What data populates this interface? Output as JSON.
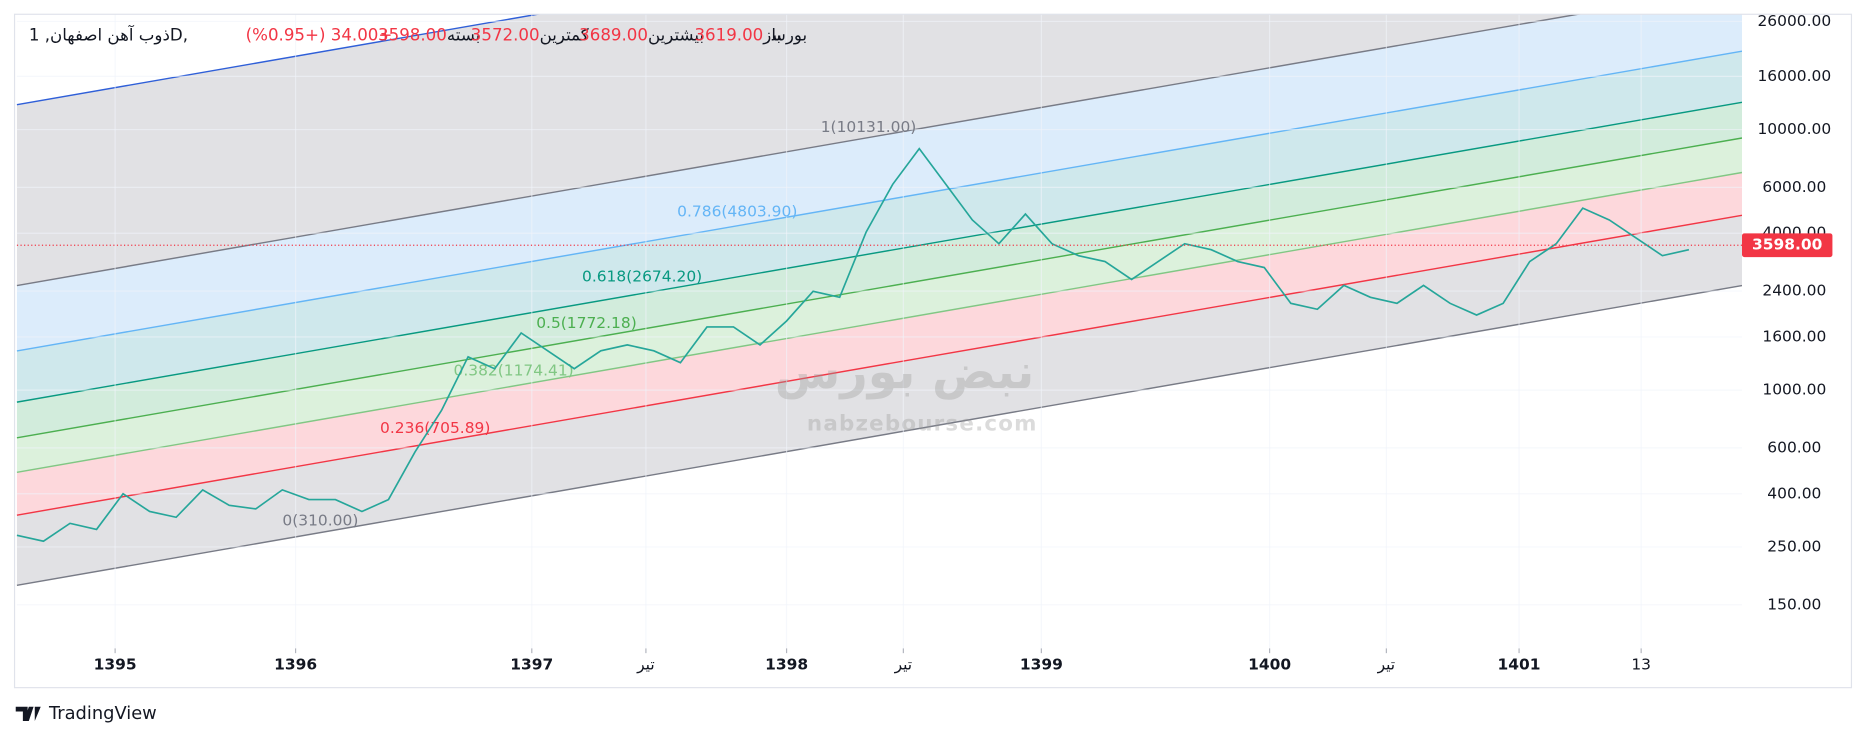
{
  "chart_data": {
    "type": "line",
    "title": "ذوب آهن اصفهان, 1D, بورس",
    "ohlc": [
      {
        "name": "باز",
        "value": "3619.00"
      },
      {
        "name": "بیشترین",
        "value": "3689.00"
      },
      {
        "name": "کمترین",
        "value": "3572.00"
      },
      {
        "name": "بسته",
        "value": "3598.00"
      }
    ],
    "change": "+34.00 (+0.95%)",
    "series": [
      {
        "name": "ذوب آهن اصفهان",
        "color": "#26a69a",
        "values": [
          277,
          263,
          308,
          292,
          400,
          342,
          325,
          414,
          361,
          350,
          414,
          380,
          380,
          342,
          380,
          579,
          836,
          1342,
          1208,
          1657,
          1415,
          1208,
          1415,
          1491,
          1415,
          1274,
          1747,
          1747,
          1491,
          1842,
          2394,
          2271,
          4046,
          6165,
          8448,
          6165,
          4497,
          3646,
          4740,
          3646,
          3281,
          3114,
          2659,
          3114,
          3646,
          3459,
          3114,
          2954,
          2153,
          2043,
          2523,
          2271,
          2153,
          2523,
          2153,
          1941,
          2153,
          3114,
          3646,
          4995,
          4497,
          3842,
          3281,
          3459
        ]
      }
    ],
    "log_scale": true,
    "ylim": [
      102,
      27700
    ],
    "yticks": [
      {
        "value": 150,
        "label": "150.00"
      },
      {
        "value": 250,
        "label": "250.00"
      },
      {
        "value": 400,
        "label": "400.00"
      },
      {
        "value": 600,
        "label": "600.00"
      },
      {
        "value": 1000,
        "label": "1000.00"
      },
      {
        "value": 1600,
        "label": "1600.00"
      },
      {
        "value": 2400,
        "label": "2400.00"
      },
      {
        "value": 4000,
        "label": "4000.00"
      },
      {
        "value": 6000,
        "label": "6000.00"
      },
      {
        "value": 10000,
        "label": "10000.00"
      },
      {
        "value": 16000,
        "label": "16000.00"
      },
      {
        "value": 26000,
        "label": "26000.00"
      }
    ],
    "xlim": [
      0,
      65
    ],
    "xticks": [
      {
        "value": 3.7,
        "label": "1395"
      },
      {
        "value": 10.5,
        "label": "1396"
      },
      {
        "value": 19.4,
        "label": "1397"
      },
      {
        "value": 23.7,
        "label": "تیر"
      },
      {
        "value": 29,
        "label": "1398"
      },
      {
        "value": 33.4,
        "label": "تیر"
      },
      {
        "value": 38.6,
        "label": "1399"
      },
      {
        "value": 47.2,
        "label": "1400"
      },
      {
        "value": 51.6,
        "label": "تیر"
      },
      {
        "value": 56.6,
        "label": "1401"
      },
      {
        "value": 61.2,
        "label": "13"
      }
    ],
    "grid": true,
    "last_price": {
      "value": 3598,
      "label": "3598.00",
      "color": "#f23645"
    },
    "annotations": [
      "1(10131.00)",
      "0.786(4803.90)",
      "0.618(2674.20)",
      "0.5(1772.18)",
      "0.382(1174.41)",
      "0.236(705.89)",
      "0(310.00)"
    ],
    "watermark": [
      "نبض بورس",
      "nabzebourse.com"
    ],
    "brand": "TradingView"
  }
}
